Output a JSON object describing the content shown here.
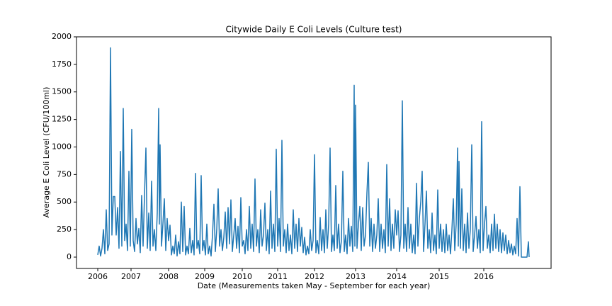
{
  "chart_data": {
    "type": "line",
    "title": "Citywide Daily E Coli Levels (Culture test)",
    "x_label": "Date (Measurements taken May - September for each year)",
    "y_label": "Average E Coli Level (CFU/100ml)",
    "color": "#1f77b4",
    "xlim": [
      0,
      670
    ],
    "xticks": [
      {
        "value": 30,
        "label": "2006"
      },
      {
        "value": 77,
        "label": "2007"
      },
      {
        "value": 130,
        "label": "2008"
      },
      {
        "value": 181,
        "label": "2009"
      },
      {
        "value": 234,
        "label": "2010"
      },
      {
        "value": 284,
        "label": "2011"
      },
      {
        "value": 336,
        "label": "2012"
      },
      {
        "value": 394,
        "label": "2013"
      },
      {
        "value": 452,
        "label": "2014"
      },
      {
        "value": 512,
        "label": "2015"
      },
      {
        "value": 575,
        "label": "2016"
      }
    ],
    "ylim": [
      -103,
      2000
    ],
    "yticks": [
      0,
      250,
      500,
      750,
      1000,
      1250,
      1500,
      1750,
      2000
    ],
    "x": [
      30,
      32,
      34,
      36,
      38,
      40,
      42,
      44,
      46,
      48,
      50,
      52,
      54,
      56,
      58,
      60,
      62,
      64,
      66,
      68,
      70,
      72,
      74,
      76,
      78,
      80,
      82,
      84,
      86,
      88,
      90,
      92,
      94,
      96,
      98,
      100,
      102,
      104,
      106,
      108,
      110,
      112,
      114,
      116,
      117,
      118,
      120,
      122,
      124,
      126,
      128,
      130,
      132,
      134,
      136,
      138,
      140,
      142,
      144,
      146,
      148,
      150,
      152,
      154,
      156,
      158,
      160,
      162,
      164,
      166,
      168,
      170,
      172,
      174,
      176,
      178,
      180,
      182,
      184,
      186,
      188,
      190,
      192,
      194,
      196,
      198,
      200,
      202,
      204,
      206,
      208,
      210,
      212,
      214,
      216,
      218,
      220,
      222,
      224,
      226,
      228,
      230,
      232,
      234,
      236,
      238,
      240,
      242,
      244,
      246,
      248,
      250,
      252,
      254,
      256,
      258,
      260,
      262,
      264,
      266,
      268,
      270,
      272,
      274,
      276,
      278,
      280,
      282,
      284,
      286,
      288,
      290,
      292,
      294,
      296,
      298,
      300,
      302,
      304,
      306,
      308,
      310,
      312,
      314,
      316,
      318,
      320,
      322,
      324,
      326,
      328,
      330,
      332,
      334,
      336,
      338,
      340,
      342,
      344,
      346,
      348,
      350,
      352,
      354,
      356,
      358,
      360,
      362,
      364,
      366,
      368,
      370,
      372,
      374,
      376,
      378,
      380,
      382,
      384,
      386,
      388,
      390,
      392,
      393,
      394,
      396,
      398,
      400,
      402,
      404,
      406,
      408,
      410,
      412,
      414,
      416,
      418,
      420,
      422,
      424,
      426,
      428,
      430,
      432,
      434,
      436,
      438,
      440,
      442,
      444,
      446,
      448,
      450,
      452,
      454,
      456,
      458,
      460,
      462,
      464,
      466,
      468,
      470,
      472,
      474,
      476,
      478,
      480,
      482,
      484,
      486,
      488,
      490,
      492,
      494,
      496,
      498,
      500,
      502,
      504,
      506,
      508,
      510,
      512,
      514,
      516,
      518,
      520,
      522,
      524,
      526,
      528,
      530,
      532,
      534,
      536,
      538,
      539,
      540,
      542,
      544,
      546,
      548,
      550,
      552,
      554,
      556,
      558,
      560,
      562,
      564,
      566,
      568,
      570,
      572,
      574,
      576,
      578,
      580,
      582,
      584,
      586,
      588,
      590,
      592,
      594,
      596,
      598,
      600,
      602,
      604,
      606,
      608,
      610,
      612,
      614,
      616,
      618,
      620,
      622,
      624,
      626,
      628,
      636,
      638,
      639
    ],
    "values": [
      20,
      100,
      10,
      80,
      250,
      30,
      430,
      60,
      120,
      1900,
      200,
      550,
      550,
      200,
      450,
      80,
      960,
      100,
      1350,
      150,
      300,
      60,
      780,
      100,
      1160,
      150,
      50,
      350,
      120,
      260,
      40,
      560,
      100,
      560,
      990,
      80,
      400,
      60,
      690,
      100,
      250,
      60,
      400,
      1350,
      300,
      1020,
      100,
      300,
      530,
      60,
      350,
      150,
      290,
      20,
      100,
      30,
      200,
      10,
      140,
      30,
      500,
      50,
      460,
      20,
      100,
      30,
      260,
      40,
      150,
      20,
      760,
      80,
      150,
      30,
      740,
      60,
      150,
      20,
      300,
      30,
      100,
      10,
      200,
      480,
      50,
      250,
      620,
      100,
      250,
      60,
      180,
      410,
      80,
      450,
      120,
      520,
      50,
      200,
      350,
      80,
      280,
      40,
      540,
      100,
      150,
      30,
      250,
      60,
      460,
      80,
      300,
      50,
      710,
      100,
      250,
      40,
      430,
      100,
      200,
      490,
      60,
      250,
      30,
      600,
      80,
      300,
      50,
      980,
      100,
      350,
      50,
      1060,
      100,
      250,
      40,
      300,
      60,
      200,
      30,
      430,
      80,
      300,
      50,
      350,
      100,
      270,
      40,
      180,
      20,
      100,
      30,
      250,
      60,
      150,
      930,
      40,
      150,
      30,
      360,
      60,
      250,
      40,
      430,
      80,
      300,
      990,
      50,
      200,
      60,
      650,
      80,
      300,
      40,
      150,
      780,
      50,
      200,
      30,
      350,
      100,
      280,
      50,
      1560,
      100,
      1380,
      80,
      300,
      460,
      60,
      450,
      100,
      200,
      580,
      860,
      100,
      350,
      50,
      300,
      80,
      200,
      530,
      50,
      300,
      80,
      250,
      40,
      840,
      100,
      530,
      60,
      300,
      80,
      430,
      200,
      420,
      50,
      200,
      1420,
      80,
      300,
      50,
      450,
      80,
      300,
      40,
      200,
      30,
      670,
      100,
      350,
      500,
      780,
      50,
      300,
      600,
      80,
      250,
      40,
      400,
      60,
      200,
      30,
      610,
      80,
      300,
      50,
      250,
      40,
      300,
      60,
      200,
      30,
      250,
      530,
      60,
      300,
      990,
      100,
      870,
      80,
      620,
      60,
      300,
      40,
      400,
      80,
      250,
      1020,
      50,
      200,
      370,
      80,
      250,
      40,
      1230,
      60,
      300,
      460,
      80,
      200,
      40,
      300,
      60,
      390,
      80,
      300,
      50,
      250,
      40,
      220,
      60,
      200,
      30,
      150,
      40,
      120,
      20,
      100,
      30,
      350,
      10,
      640,
      0,
      0,
      140,
      0
    ]
  }
}
